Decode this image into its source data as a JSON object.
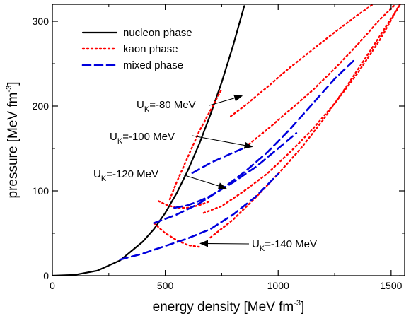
{
  "chart_data": {
    "type": "line",
    "xlabel": "energy density [MeV fm",
    "xlabel_sup": "-3",
    "xlabel_end": "]",
    "ylabel": "pressure [MeV fm",
    "ylabel_sup": "-3",
    "ylabel_end": "]",
    "xlim": [
      0,
      1560
    ],
    "ylim": [
      0,
      320
    ],
    "xticks": [
      0,
      500,
      1000,
      1500
    ],
    "yticks": [
      0,
      100,
      200,
      300
    ],
    "grid": false,
    "legend_position": "top-left",
    "legend": [
      {
        "label": "nucleon phase",
        "style": "solid",
        "color": "#000000"
      },
      {
        "label": "kaon phase",
        "style": "dotted",
        "color": "#ff0000"
      },
      {
        "label": "mixed phase",
        "style": "dashed",
        "color": "#0000dd"
      }
    ],
    "series": [
      {
        "name": "nucleon phase",
        "style": "solid",
        "color": "#000000",
        "x": [
          0,
          100,
          200,
          300,
          400,
          450,
          500,
          550,
          600,
          650,
          700,
          750,
          800,
          850
        ],
        "y": [
          0,
          1,
          6,
          18,
          40,
          55,
          74,
          97,
          124,
          155,
          190,
          228,
          271,
          318
        ]
      },
      {
        "style": "dotted",
        "color": "#ff0000",
        "group": "UK=-80 MeV",
        "x": [
          520,
          550,
          600,
          650,
          700,
          750
        ],
        "y": [
          90,
          110,
          140,
          170,
          195,
          220
        ]
      },
      {
        "style": "dotted",
        "color": "#ff0000",
        "group": "UK=-80 MeV",
        "x": [
          790,
          850,
          950,
          1050,
          1150,
          1250,
          1350,
          1420
        ],
        "y": [
          188,
          200,
          222,
          245,
          266,
          287,
          307,
          320
        ]
      },
      {
        "style": "dotted",
        "color": "#ff0000",
        "group": "UK=-100 MeV",
        "x": [
          870,
          950,
          1050,
          1150,
          1250,
          1350,
          1450,
          1520
        ],
        "y": [
          155,
          172,
          195,
          218,
          244,
          272,
          302,
          320
        ]
      },
      {
        "style": "dotted",
        "color": "#ff0000",
        "group": "UK=-120 MeV",
        "x": [
          470,
          500,
          550,
          600,
          650,
          700
        ],
        "y": [
          88,
          84,
          80,
          80,
          83,
          88
        ]
      },
      {
        "style": "dotted",
        "color": "#ff0000",
        "group": "UK=-120 MeV",
        "x": [
          670,
          750,
          850,
          950,
          1050,
          1150,
          1250,
          1350,
          1450,
          1540
        ],
        "y": [
          74,
          82,
          100,
          120,
          145,
          172,
          203,
          238,
          278,
          320
        ]
      },
      {
        "style": "dotted",
        "color": "#ff0000",
        "group": "UK=-140 MeV",
        "x": [
          450,
          500,
          550,
          600,
          650
        ],
        "y": [
          62,
          50,
          42,
          36,
          34
        ]
      },
      {
        "style": "dotted",
        "color": "#ff0000",
        "group": "UK=-140 MeV",
        "x": [
          700,
          800,
          900,
          1000,
          1100,
          1200,
          1300,
          1400,
          1480,
          1540
        ],
        "y": [
          45,
          66,
          92,
          120,
          150,
          184,
          222,
          262,
          295,
          320
        ]
      },
      {
        "style": "dashed",
        "color": "#0000dd",
        "group": "UK=-100 MeV",
        "x": [
          620,
          700,
          800,
          870
        ],
        "y": [
          121,
          133,
          145,
          153
        ]
      },
      {
        "style": "dashed",
        "color": "#0000dd",
        "group": "UK=-120 MeV",
        "x": [
          540,
          600,
          650,
          700,
          800,
          900,
          1000,
          1080
        ],
        "y": [
          80,
          83,
          88,
          94,
          110,
          128,
          150,
          168
        ]
      },
      {
        "style": "dashed",
        "color": "#0000dd",
        "group": "UK=-140 MeV",
        "x": [
          300,
          400,
          500,
          600,
          700,
          800,
          900,
          1000
        ],
        "y": [
          19,
          26,
          35,
          44,
          55,
          72,
          93,
          120
        ]
      },
      {
        "style": "dashed",
        "color": "#0000dd",
        "group": "UK=-140 MeV",
        "x": [
          450,
          550,
          650,
          750,
          850,
          950,
          1050,
          1150,
          1250,
          1340
        ],
        "y": [
          62,
          72,
          85,
          102,
          122,
          145,
          172,
          202,
          232,
          255
        ]
      }
    ],
    "annotations": [
      {
        "text": "U",
        "sub": "K",
        "rest": "=-80 MeV",
        "text_x": 193,
        "text_y": 188,
        "arrow_to": [
          840,
          212
        ]
      },
      {
        "text": "U",
        "sub": "K",
        "rest": "=-100 MeV",
        "text_x": 155,
        "text_y": 198,
        "arrow_to": [
          885,
          152
        ]
      },
      {
        "text": "U",
        "sub": "K",
        "rest": "=-120 MeV",
        "text_x": 135,
        "text_y": 110,
        "arrow_to": [
          770,
          103
        ]
      },
      {
        "text": "U",
        "sub": "K",
        "rest": "=-140 MeV",
        "text_x": 870,
        "text_y": 38,
        "arrow_to": [
          655,
          38
        ]
      }
    ]
  }
}
